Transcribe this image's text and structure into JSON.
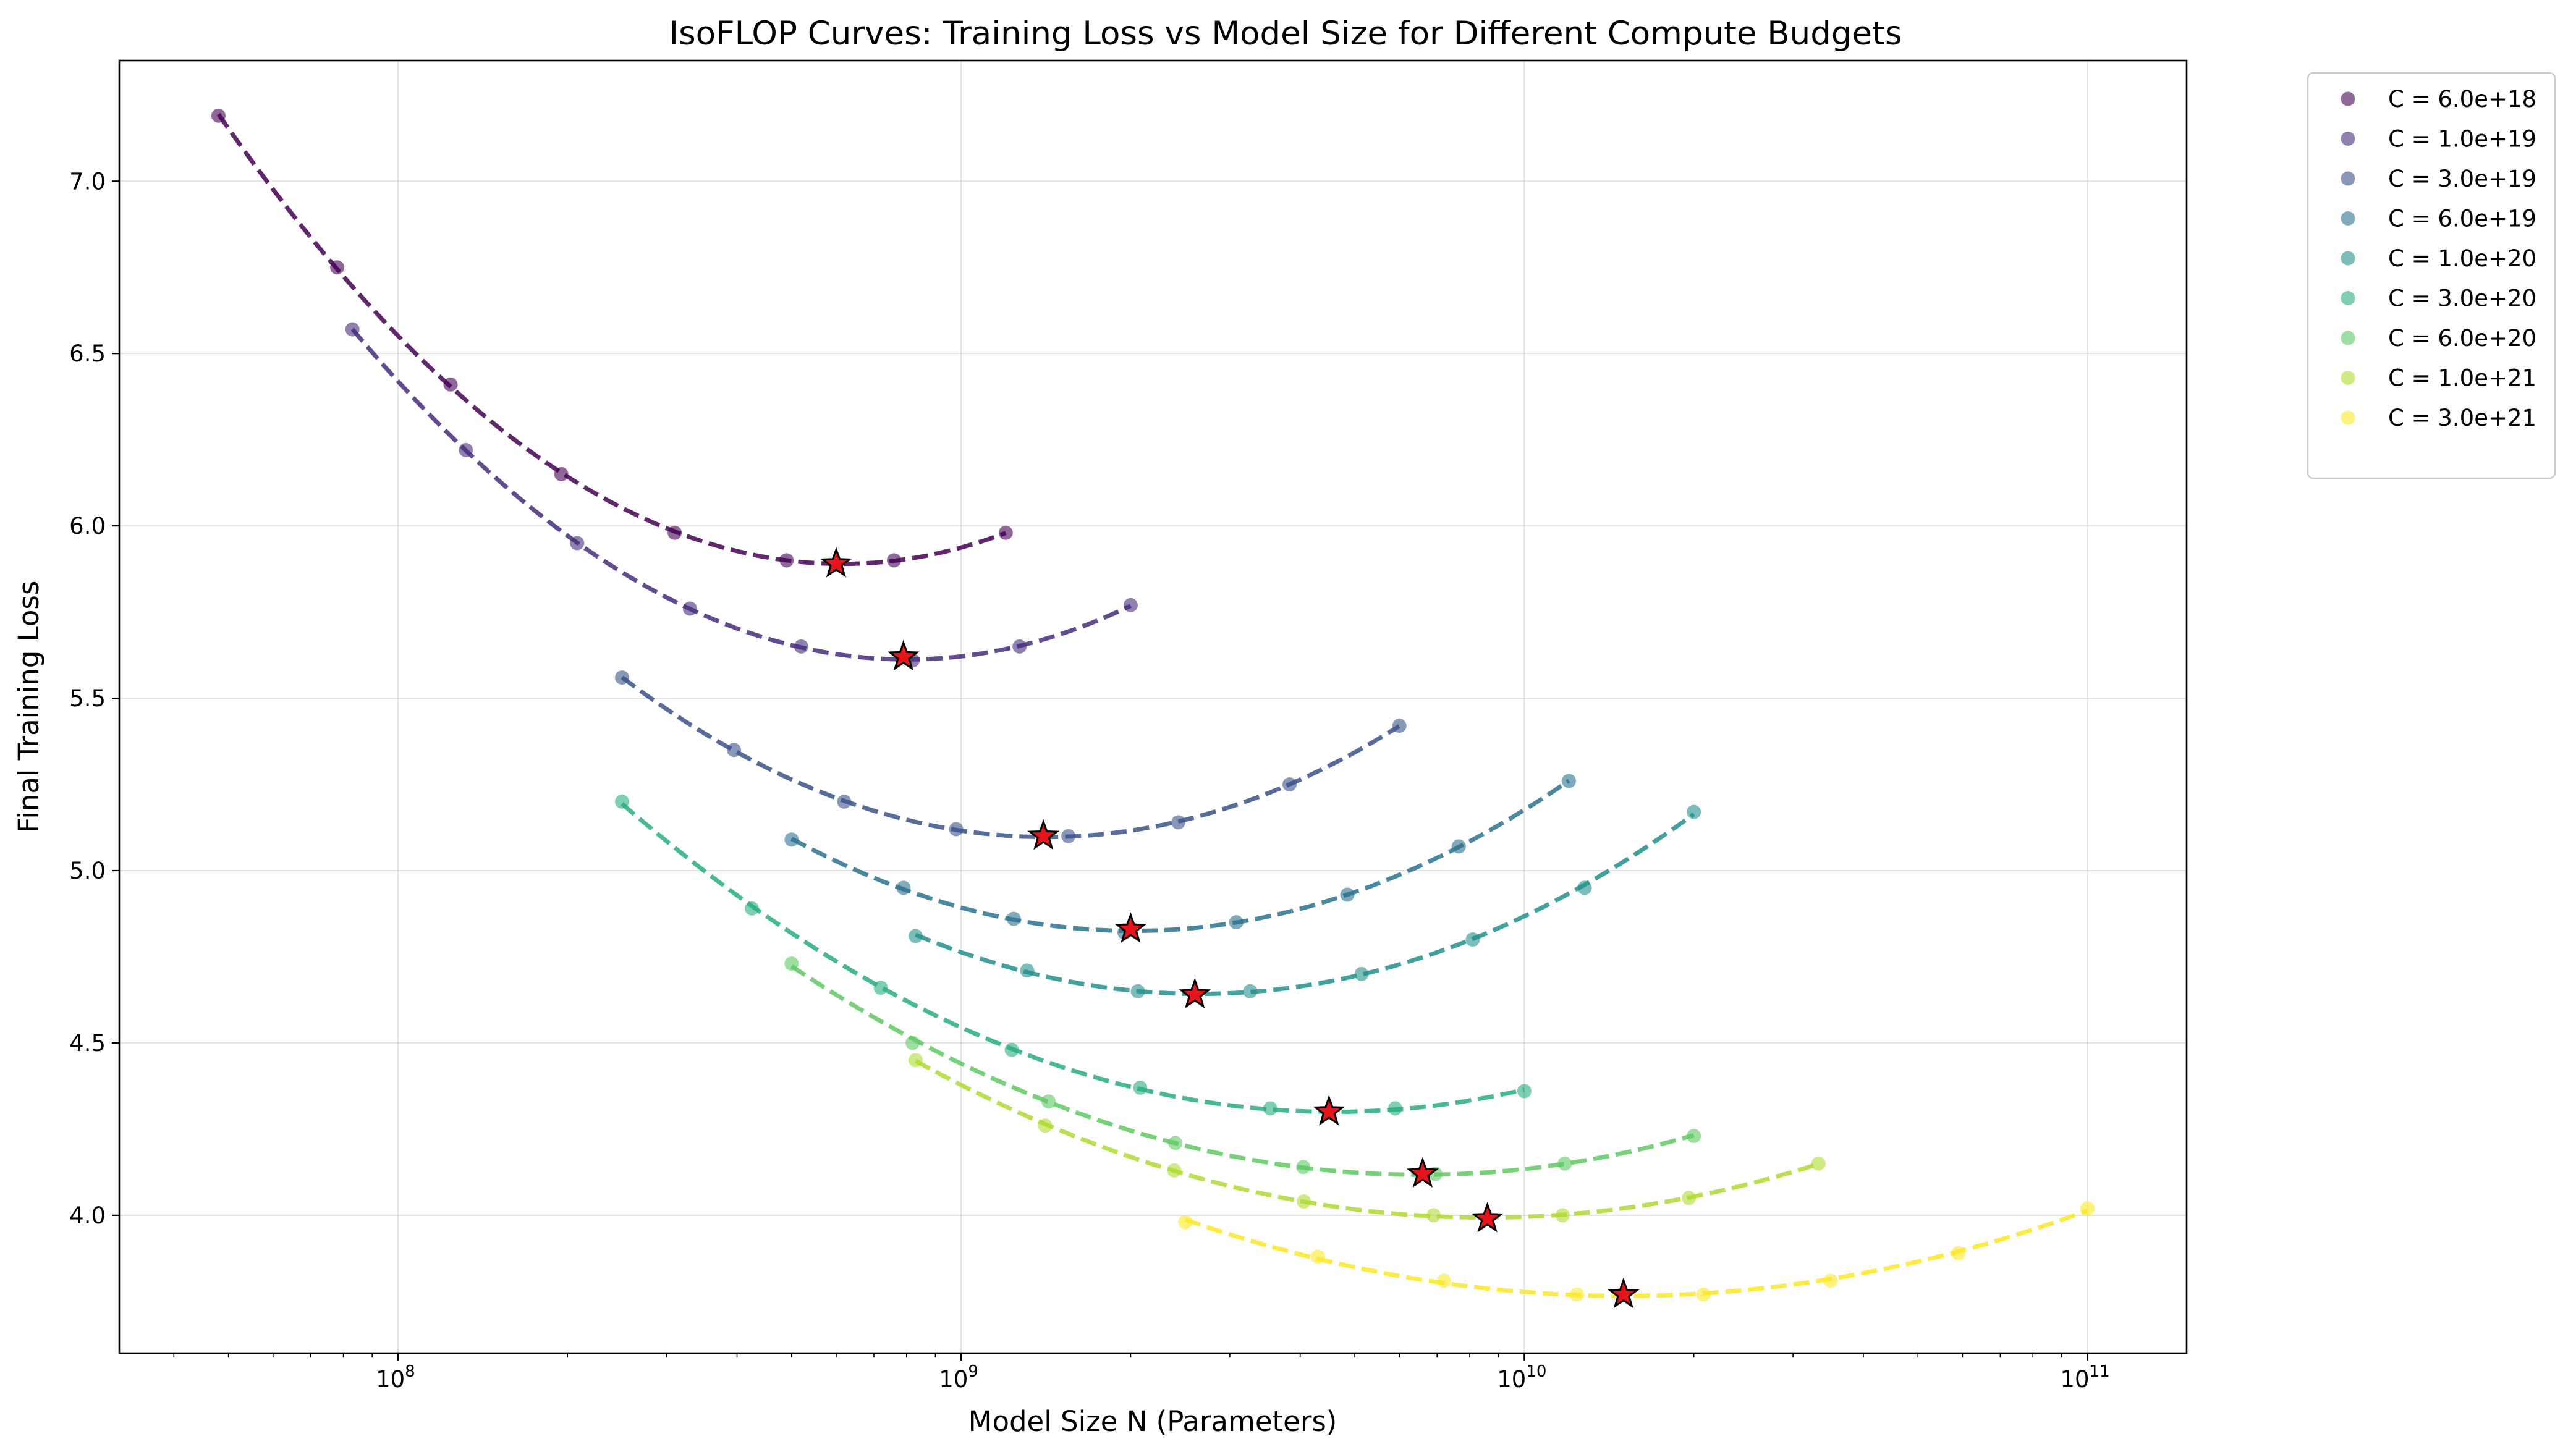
{
  "chart_data": {
    "type": "scatter",
    "title": "IsoFLOP Curves: Training Loss vs Model Size for Different Compute Budgets",
    "xlabel": "Model Size N (Parameters)",
    "ylabel": "Final Training Loss",
    "xscale": "log",
    "xlim": [
      32000000,
      150000000000
    ],
    "ylim": [
      3.6,
      7.35
    ],
    "grid": true,
    "legend_position": "outside-top-right",
    "x_major_ticks": [
      {
        "value": 100000000,
        "base": "10",
        "exp": "8"
      },
      {
        "value": 1000000000,
        "base": "10",
        "exp": "9"
      },
      {
        "value": 10000000000,
        "base": "10",
        "exp": "10"
      },
      {
        "value": 100000000000,
        "base": "10",
        "exp": "11"
      }
    ],
    "y_ticks": [
      {
        "value": 4.0,
        "label": "4.0"
      },
      {
        "value": 4.5,
        "label": "4.5"
      },
      {
        "value": 5.0,
        "label": "5.0"
      },
      {
        "value": 5.5,
        "label": "5.5"
      },
      {
        "value": 6.0,
        "label": "6.0"
      },
      {
        "value": 6.5,
        "label": "6.5"
      },
      {
        "value": 7.0,
        "label": "7.0"
      }
    ],
    "optimum_marker": {
      "shape": "star",
      "fill": "#e8141c",
      "stroke": "#000000"
    },
    "series": [
      {
        "name": "C = 6.0e+18",
        "color": "#440154",
        "x": [
          48000000,
          78000000,
          124000000,
          195000000,
          310000000,
          490000000,
          760000000,
          1200000000
        ],
        "y": [
          7.19,
          6.75,
          6.41,
          6.15,
          5.98,
          5.9,
          5.9,
          5.98
        ],
        "optimum": {
          "x": 600000000,
          "y": 5.89
        }
      },
      {
        "name": "C = 1.0e+19",
        "color": "#472d7b",
        "x": [
          83000000,
          132000000,
          208000000,
          330000000,
          520000000,
          820000000,
          1270000000,
          2000000000
        ],
        "y": [
          6.57,
          6.22,
          5.95,
          5.76,
          5.65,
          5.61,
          5.65,
          5.77
        ],
        "optimum": {
          "x": 790000000,
          "y": 5.62
        }
      },
      {
        "name": "C = 3.0e+19",
        "color": "#3b528b",
        "x": [
          250000000,
          395000000,
          620000000,
          980000000,
          1550000000,
          2430000000,
          3830000000,
          6000000000
        ],
        "y": [
          5.56,
          5.35,
          5.2,
          5.12,
          5.1,
          5.14,
          5.25,
          5.42
        ],
        "optimum": {
          "x": 1400000000,
          "y": 5.1
        }
      },
      {
        "name": "C = 6.0e+19",
        "color": "#2c728e",
        "x": [
          500000000,
          790000000,
          1240000000,
          1950000000,
          3080000000,
          4850000000,
          7650000000,
          12000000000
        ],
        "y": [
          5.09,
          4.95,
          4.86,
          4.82,
          4.85,
          4.93,
          5.07,
          5.26
        ],
        "optimum": {
          "x": 2000000000,
          "y": 4.83
        }
      },
      {
        "name": "C = 1.0e+20",
        "color": "#21918c",
        "x": [
          830000000,
          1310000000,
          2060000000,
          3260000000,
          5140000000,
          8100000000,
          12800000000,
          20000000000
        ],
        "y": [
          4.81,
          4.71,
          4.65,
          4.65,
          4.7,
          4.8,
          4.95,
          5.17
        ],
        "optimum": {
          "x": 2600000000,
          "y": 4.64
        }
      },
      {
        "name": "C = 3.0e+20",
        "color": "#28ae80",
        "x": [
          250000000,
          425000000,
          720000000,
          1230000000,
          2080000000,
          3540000000,
          5900000000,
          10000000000
        ],
        "y": [
          5.2,
          4.89,
          4.66,
          4.48,
          4.37,
          4.31,
          4.31,
          4.36
        ],
        "optimum": {
          "x": 4500000000,
          "y": 4.3
        }
      },
      {
        "name": "C = 6.0e+20",
        "color": "#5ec962",
        "x": [
          500000000,
          820000000,
          1430000000,
          2400000000,
          4050000000,
          6950000000,
          11800000000,
          20000000000
        ],
        "y": [
          4.73,
          4.5,
          4.33,
          4.21,
          4.14,
          4.12,
          4.15,
          4.23
        ],
        "optimum": {
          "x": 6600000000,
          "y": 4.12
        }
      },
      {
        "name": "C = 1.0e+21",
        "color": "#addc30",
        "x": [
          830000000,
          1410000000,
          2390000000,
          4060000000,
          6900000000,
          11700000000,
          19600000000,
          33300000000
        ],
        "y": [
          4.45,
          4.26,
          4.13,
          4.04,
          4.0,
          4.0,
          4.05,
          4.15
        ],
        "optimum": {
          "x": 8600000000,
          "y": 3.99
        }
      },
      {
        "name": "C = 3.0e+21",
        "color": "#fde725",
        "x": [
          2500000000,
          4300000000,
          7200000000,
          12400000000,
          20800000000,
          35000000000,
          59000000000,
          100000000000
        ],
        "y": [
          3.98,
          3.88,
          3.81,
          3.77,
          3.77,
          3.81,
          3.89,
          4.02
        ],
        "optimum": {
          "x": 15000000000,
          "y": 3.77
        }
      }
    ]
  }
}
